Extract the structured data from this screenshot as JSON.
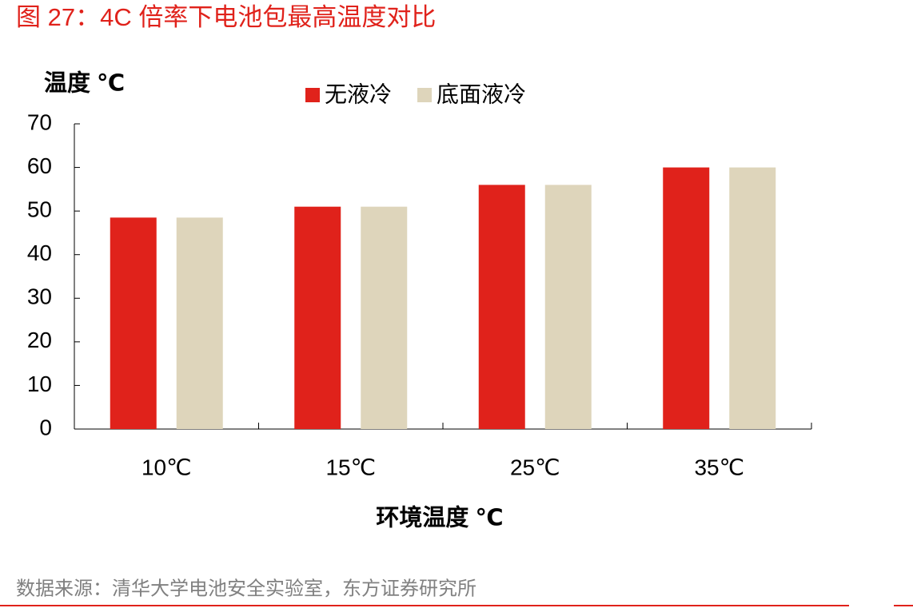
{
  "chart_data": {
    "type": "bar",
    "title": "图 27：4C 倍率下电池包最高温度对比",
    "y_label": "温度 ℃",
    "x_label": "环境温度 ℃",
    "source": "数据来源：清华大学电池安全实验室，东方证券研究所",
    "categories": [
      "10℃",
      "15℃",
      "25℃",
      "35℃"
    ],
    "series": [
      {
        "name": "无液冷",
        "color": "#e0221b",
        "values": [
          48.5,
          51,
          56,
          60
        ]
      },
      {
        "name": "底面液冷",
        "color": "#ded5bb",
        "values": [
          48.5,
          51,
          56,
          60
        ]
      }
    ],
    "ylim": [
      0,
      70
    ],
    "yticks": [
      0,
      10,
      20,
      30,
      40,
      50,
      60,
      70
    ],
    "grid": false,
    "legend": "top"
  }
}
